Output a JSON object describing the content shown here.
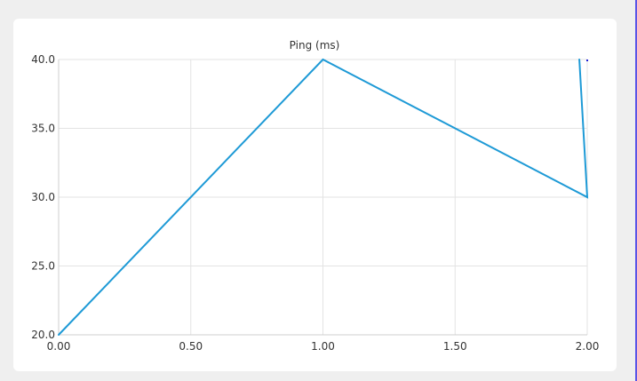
{
  "chart_data": {
    "type": "line",
    "title": "Ping (ms)",
    "xlabel": "",
    "ylabel": "",
    "xlim": [
      0,
      2
    ],
    "ylim": [
      20,
      40
    ],
    "x_ticks": [
      "0.00",
      "0.50",
      "1.00",
      "1.50",
      "2.00"
    ],
    "y_ticks": [
      "20.0",
      "25.0",
      "30.0",
      "35.0",
      "40.0"
    ],
    "grid": true,
    "legend": "none",
    "series": [
      {
        "color": "#1e9ad6",
        "points": [
          {
            "x": 0,
            "y": 20
          },
          {
            "x": 1,
            "y": 40
          },
          {
            "x": 2,
            "y": 30
          },
          {
            "x": 1.97,
            "y": 40
          }
        ]
      }
    ],
    "end_marker": {
      "x": 2,
      "y": 40,
      "color": "#1f1fd6"
    }
  },
  "colors": {
    "page_background": "#efefef",
    "card_background": "#ffffff",
    "gridline": "#e3e3e3",
    "axis": "#cfcfcf",
    "window_edge": "#5b55e6"
  }
}
